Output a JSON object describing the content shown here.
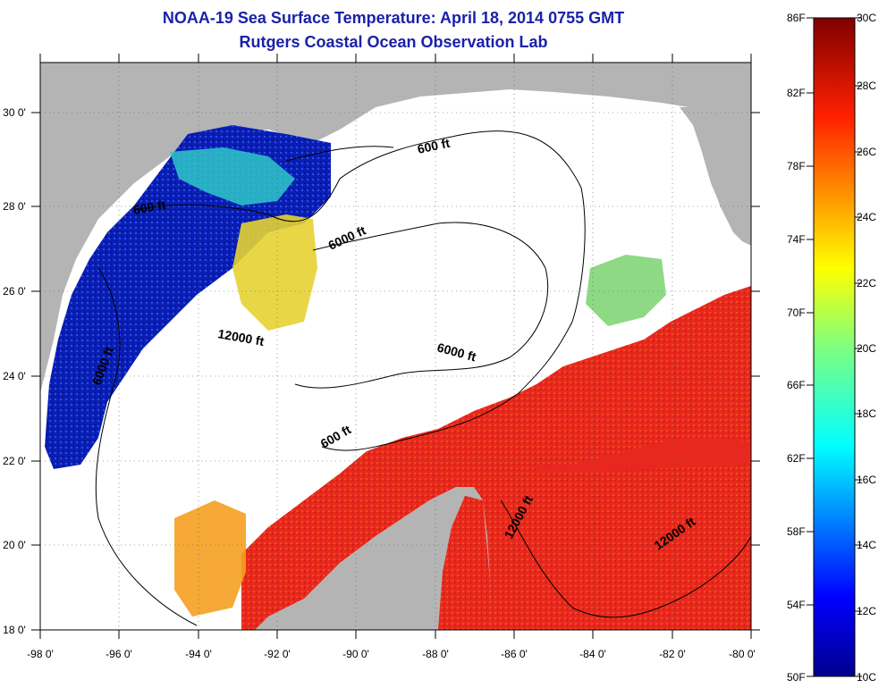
{
  "title": "NOAA-19 Sea Surface Temperature:  April 18, 2014 0755 GMT",
  "subtitle": "Rutgers Coastal Ocean Observation Lab",
  "axes": {
    "lon_ticks": [
      "-98 0'",
      "-96 0'",
      "-94 0'",
      "-92 0'",
      "-90 0'",
      "-88 0'",
      "-86 0'",
      "-84 0'",
      "-82 0'",
      "-80 0'"
    ],
    "lat_ticks": [
      "18 0'",
      "20 0'",
      "22 0'",
      "24 0'",
      "26 0'",
      "28 0'",
      "30 0'"
    ]
  },
  "contour_labels": [
    "600 ft",
    "600 ft",
    "6000 ft",
    "12000 ft",
    "6000 ft",
    "6000 ft",
    "600 ft",
    "12000 ft",
    "12000 ft"
  ],
  "colorbar": {
    "fahrenheit": [
      "86F",
      "82F",
      "78F",
      "74F",
      "70F",
      "66F",
      "62F",
      "58F",
      "54F",
      "50F"
    ],
    "celsius": [
      "30C",
      "28C",
      "26C",
      "24C",
      "22C",
      "20C",
      "18C",
      "16C",
      "14C",
      "12C",
      "10C"
    ]
  },
  "colors": {
    "land": "#b4b4b4",
    "no_data": "#ffffff",
    "title_text": "#1a22a8",
    "warm": "#e8281e",
    "cold": "#0a1eb4"
  }
}
